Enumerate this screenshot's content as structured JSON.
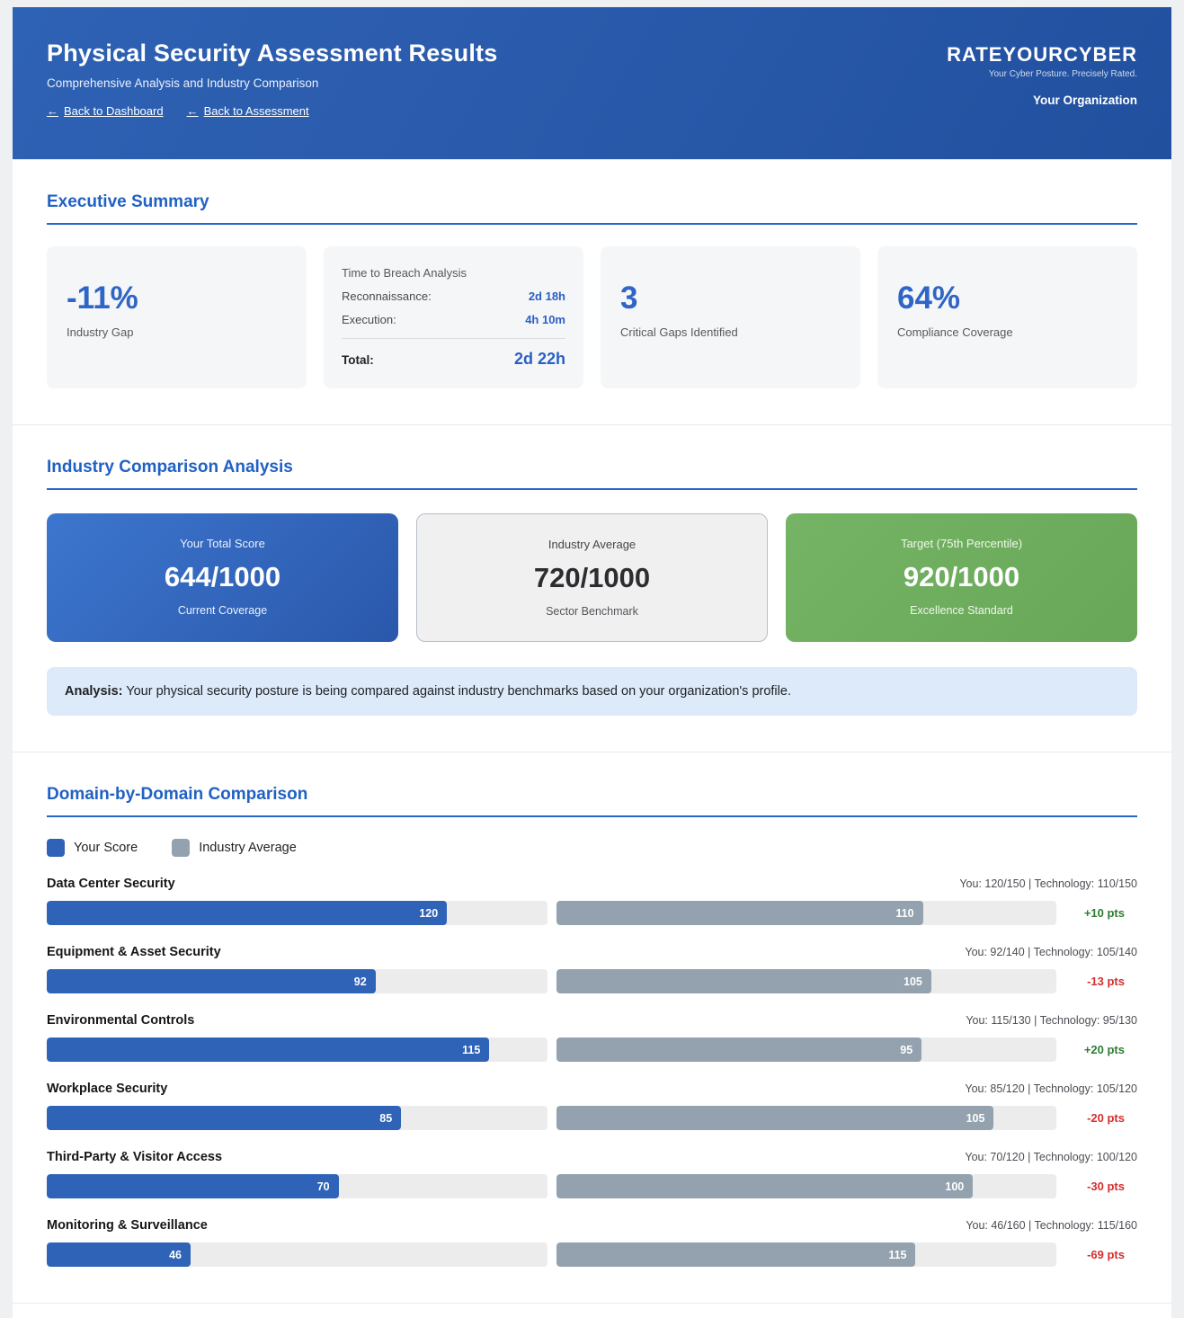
{
  "colors": {
    "accent_blue": "#2161c4",
    "bar_you": "#2f63b7",
    "bar_industry": "#93a2ae",
    "delta_positive": "#2e7d32",
    "delta_negative": "#d32f2f"
  },
  "header": {
    "title": "Physical Security Assessment Results",
    "subtitle": "Comprehensive Analysis and Industry Comparison",
    "back_dashboard": {
      "arrow": "←",
      "label": "Back to Dashboard"
    },
    "back_assessment": {
      "arrow": "←",
      "label": "Back to Assessment"
    },
    "logo": "RATEYOURCYBER",
    "tagline": "Your Cyber Posture. Precisely Rated.",
    "organization": "Your Organization"
  },
  "executive_summary": {
    "title": "Executive Summary",
    "industry_gap": {
      "value": "-11%",
      "label": "Industry Gap"
    },
    "breach": {
      "title": "Time to Breach Analysis",
      "rows": [
        {
          "label": "Reconnaissance:",
          "value": "2d 18h"
        },
        {
          "label": "Execution:",
          "value": "4h 10m"
        }
      ],
      "total_label": "Total:",
      "total_value": "2d 22h"
    },
    "critical_gaps": {
      "value": "3",
      "label": "Critical Gaps Identified"
    },
    "compliance": {
      "value": "64%",
      "label": "Compliance Coverage"
    }
  },
  "industry_comparison": {
    "title": "Industry Comparison Analysis",
    "cards": [
      {
        "heading": "Your Total Score",
        "score": "644/1000",
        "caption": "Current Coverage"
      },
      {
        "heading": "Industry Average",
        "score": "720/1000",
        "caption": "Sector Benchmark"
      },
      {
        "heading": "Target (75th Percentile)",
        "score": "920/1000",
        "caption": "Excellence Standard"
      }
    ],
    "analysis_label": "Analysis:",
    "analysis_text": " Your physical security posture is being compared against industry benchmarks based on your organization's profile."
  },
  "domain_comparison": {
    "title": "Domain-by-Domain Comparison",
    "legend": [
      {
        "label": "Your Score",
        "color": "#2f63b7"
      },
      {
        "label": "Industry Average",
        "color": "#93a2ae"
      }
    ],
    "chart_data": {
      "type": "bar",
      "categories": [
        "Data Center Security",
        "Equipment & Asset Security",
        "Environmental Controls",
        "Workplace Security",
        "Third-Party & Visitor Access",
        "Monitoring & Surveillance"
      ],
      "series": [
        {
          "name": "Your Score",
          "values": [
            120,
            92,
            115,
            85,
            70,
            46
          ]
        },
        {
          "name": "Industry Average",
          "values": [
            110,
            105,
            95,
            105,
            100,
            115
          ]
        }
      ],
      "max_per_category": [
        150,
        140,
        130,
        120,
        120,
        160
      ],
      "deltas": [
        "+10 pts",
        "-13 pts",
        "+20 pts",
        "-20 pts",
        "-30 pts",
        "-69 pts"
      ],
      "legend_position": "top-left",
      "grid": false
    },
    "domains": [
      {
        "name": "Data Center Security",
        "meta": "You: 120/150 | Technology: 110/150",
        "you": 120,
        "industry": 110,
        "max": 150,
        "delta": "+10 pts"
      },
      {
        "name": "Equipment & Asset Security",
        "meta": "You: 92/140 | Technology: 105/140",
        "you": 92,
        "industry": 105,
        "max": 140,
        "delta": "-13 pts"
      },
      {
        "name": "Environmental Controls",
        "meta": "You: 115/130 | Technology: 95/130",
        "you": 115,
        "industry": 95,
        "max": 130,
        "delta": "+20 pts"
      },
      {
        "name": "Workplace Security",
        "meta": "You: 85/120 | Technology: 105/120",
        "you": 85,
        "industry": 105,
        "max": 120,
        "delta": "-20 pts"
      },
      {
        "name": "Third-Party & Visitor Access",
        "meta": "You: 70/120 | Technology: 100/120",
        "you": 70,
        "industry": 100,
        "max": 120,
        "delta": "-30 pts"
      },
      {
        "name": "Monitoring & Surveillance",
        "meta": "You: 46/160 | Technology: 115/160",
        "you": 46,
        "industry": 115,
        "max": 160,
        "delta": "-69 pts"
      }
    ]
  }
}
